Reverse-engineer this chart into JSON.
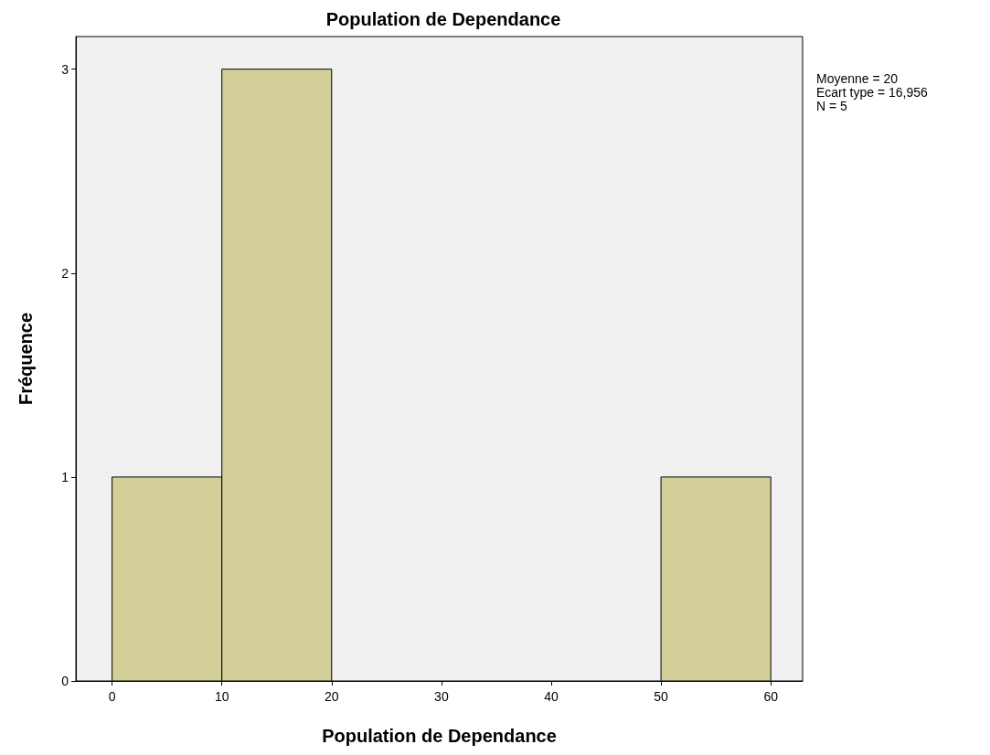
{
  "chart_data": {
    "type": "histogram",
    "title": "Population de Dependance",
    "xlabel": "Population de Dependance",
    "ylabel": "Fréquence",
    "bins": [
      0,
      10,
      20,
      30,
      40,
      50,
      60
    ],
    "values": [
      1,
      3,
      0,
      0,
      0,
      1
    ],
    "color": "#d3cf98",
    "xlim": [
      -3.3,
      62.9
    ],
    "xticks": [
      0,
      10,
      20,
      30,
      40,
      50,
      60
    ],
    "ylim": [
      0,
      3.16
    ],
    "yticks": [
      0,
      1,
      2,
      3
    ],
    "grid": false,
    "annotations": [
      "Moyenne = 20",
      "Ecart type = 16,956",
      "N = 5"
    ]
  }
}
